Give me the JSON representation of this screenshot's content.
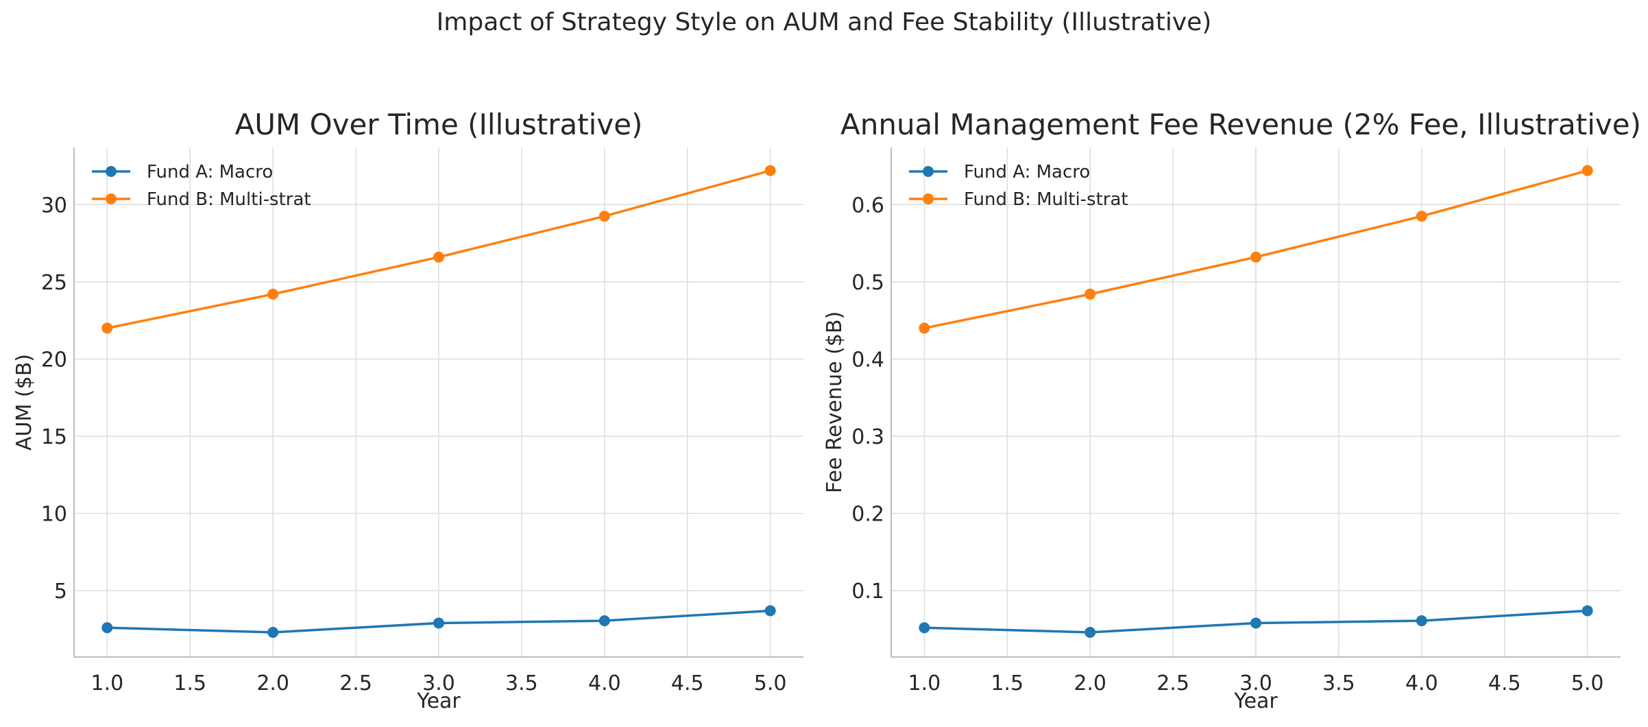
{
  "figure": {
    "suptitle": "Impact of Strategy Style on AUM and Fee Stability (Illustrative)"
  },
  "colors": {
    "fund_a": "#1f77b4",
    "fund_b": "#ff7f0e",
    "grid": "#dcdcdc",
    "axis": "#bdbdbd",
    "text": "#262626"
  },
  "chart_data": [
    {
      "type": "line",
      "title": "AUM Over Time (Illustrative)",
      "xlabel": "Year",
      "ylabel": "AUM ($B)",
      "x": [
        1,
        2,
        3,
        4,
        5
      ],
      "xlim": [
        0.8,
        5.2
      ],
      "ylim": [
        0.7,
        33.7
      ],
      "xticks": [
        1.0,
        1.5,
        2.0,
        2.5,
        3.0,
        3.5,
        4.0,
        4.5,
        5.0
      ],
      "xtick_labels": [
        "1.0",
        "1.5",
        "2.0",
        "2.5",
        "3.0",
        "3.5",
        "4.0",
        "4.5",
        "5.0"
      ],
      "yticks": [
        5,
        10,
        15,
        20,
        25,
        30
      ],
      "ytick_labels": [
        "5",
        "10",
        "15",
        "20",
        "25",
        "30"
      ],
      "grid": true,
      "legend_position": "top-left",
      "series": [
        {
          "name": "Fund A: Macro",
          "color": "#1f77b4",
          "values": [
            2.6,
            2.3,
            2.9,
            3.05,
            3.7
          ]
        },
        {
          "name": "Fund B: Multi-strat",
          "color": "#ff7f0e",
          "values": [
            22.0,
            24.2,
            26.6,
            29.25,
            32.2
          ]
        }
      ]
    },
    {
      "type": "line",
      "title": "Annual Management Fee Revenue (2% Fee, Illustrative)",
      "xlabel": "Year",
      "ylabel": "Fee Revenue ($B)",
      "x": [
        1,
        2,
        3,
        4,
        5
      ],
      "xlim": [
        0.8,
        5.2
      ],
      "ylim": [
        0.014,
        0.674
      ],
      "xticks": [
        1.0,
        1.5,
        2.0,
        2.5,
        3.0,
        3.5,
        4.0,
        4.5,
        5.0
      ],
      "xtick_labels": [
        "1.0",
        "1.5",
        "2.0",
        "2.5",
        "3.0",
        "3.5",
        "4.0",
        "4.5",
        "5.0"
      ],
      "yticks": [
        0.1,
        0.2,
        0.3,
        0.4,
        0.5,
        0.6
      ],
      "ytick_labels": [
        "0.1",
        "0.2",
        "0.3",
        "0.4",
        "0.5",
        "0.6"
      ],
      "grid": true,
      "legend_position": "top-left",
      "series": [
        {
          "name": "Fund A: Macro",
          "color": "#1f77b4",
          "values": [
            0.052,
            0.046,
            0.058,
            0.061,
            0.074
          ]
        },
        {
          "name": "Fund B: Multi-strat",
          "color": "#ff7f0e",
          "values": [
            0.44,
            0.484,
            0.532,
            0.585,
            0.644
          ]
        }
      ]
    }
  ]
}
